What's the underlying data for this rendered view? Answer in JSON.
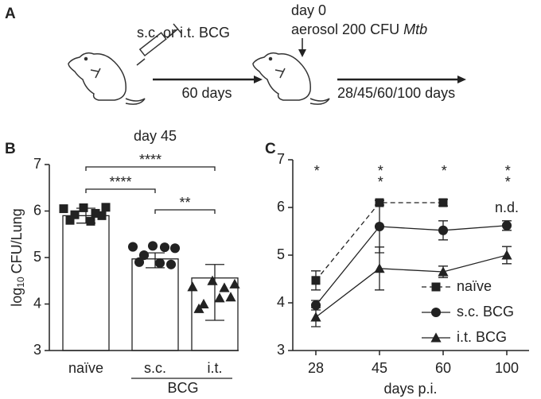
{
  "panel_labels": [
    "A",
    "B",
    "C"
  ],
  "diagram": {
    "vaccination": "s.c. or i.t. BCG",
    "interval": "60 days",
    "challenge_day": "day 0",
    "challenge": [
      "aerosol 200 CFU",
      "Mtb"
    ],
    "timepoints": "28/45/60/100 days"
  },
  "chart_data": [
    {
      "type": "bar",
      "title": "day 45",
      "ylabel": [
        "log",
        "10",
        "CFU/Lung"
      ],
      "categories": [
        "naïve",
        "s.c.",
        "i.t."
      ],
      "group_label": "BCG",
      "values": [
        5.9,
        4.97,
        4.56
      ],
      "error_low": [
        5.74,
        4.78,
        3.65
      ],
      "error_high": [
        6.06,
        5.1,
        4.85
      ],
      "points": [
        [
          6.05,
          6.07,
          5.95,
          6.08,
          5.92,
          5.78,
          5.8,
          5.9
        ],
        [
          5.23,
          5.25,
          5.22,
          5.2,
          5.05,
          4.88,
          4.9,
          4.85
        ],
        [
          4.37,
          4.5,
          4.35,
          4.43,
          4.0,
          4.13,
          3.9,
          4.15
        ]
      ],
      "markers": [
        "square",
        "circle",
        "triangle"
      ],
      "color": "#222222",
      "significance": [
        "****",
        "****",
        "**"
      ],
      "ylim": [
        3,
        7
      ],
      "yticks": [
        3,
        4,
        5,
        6,
        7
      ]
    },
    {
      "type": "line",
      "xlabel": "days p.i.",
      "categories": [
        "28",
        "45",
        "60",
        "100"
      ],
      "series": [
        {
          "name": "naïve",
          "color": "#222222",
          "marker": "square",
          "dashed": true,
          "values": [
            4.47,
            6.1,
            6.1,
            null
          ],
          "errors": [
            0.2,
            0.05,
            0.07,
            null
          ]
        },
        {
          "name": "s.c. BCG",
          "color": "#222222",
          "marker": "circle",
          "dashed": false,
          "values": [
            3.95,
            5.6,
            5.52,
            5.62
          ],
          "errors": [
            0.1,
            0.55,
            0.2,
            0.1
          ]
        },
        {
          "name": "i.t. BCG",
          "color": "#222222",
          "marker": "triangle",
          "dashed": false,
          "values": [
            3.7,
            4.72,
            4.65,
            5.0
          ],
          "errors": [
            0.2,
            0.45,
            0.12,
            0.18
          ]
        }
      ],
      "significance": [
        "*",
        "**",
        "*",
        "**"
      ],
      "nd_label": "n.d.",
      "legend": "lower right",
      "ylim": [
        3,
        7
      ],
      "yticks": [
        3,
        4,
        5,
        6,
        7
      ]
    }
  ]
}
